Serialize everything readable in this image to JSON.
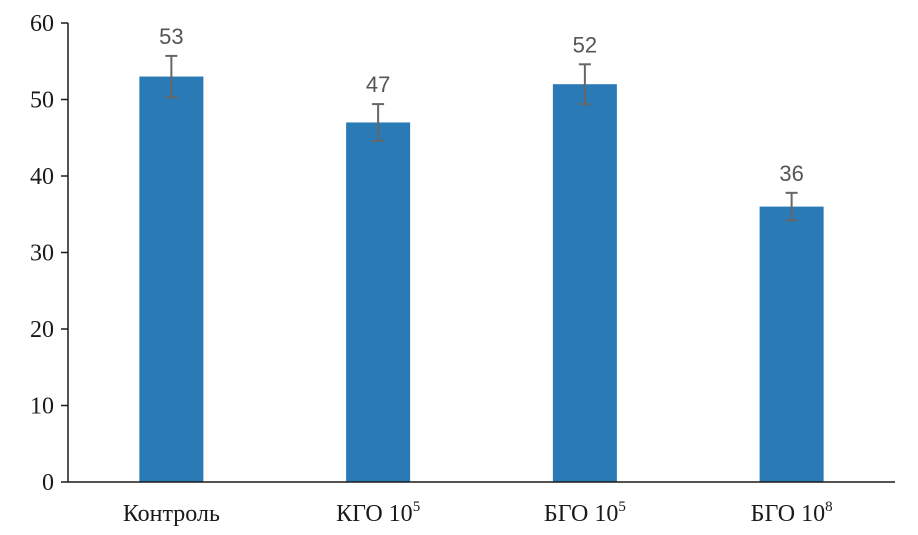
{
  "chart_data": {
    "type": "bar",
    "categories": [
      {
        "base": "Контроль",
        "sup": ""
      },
      {
        "base": "КГО 10",
        "sup": "5"
      },
      {
        "base": "БГО 10",
        "sup": "5"
      },
      {
        "base": "БГО 10",
        "sup": "8"
      }
    ],
    "values": [
      53,
      47,
      52,
      36
    ],
    "error": [
      2.7,
      2.4,
      2.6,
      1.8
    ],
    "data_labels": [
      "53",
      "47",
      "52",
      "36"
    ],
    "ylim": [
      0,
      60
    ],
    "yticks": [
      0,
      10,
      20,
      30,
      40,
      50,
      60
    ],
    "ytick_labels": [
      "0",
      "10",
      "20",
      "30",
      "40",
      "50",
      "60"
    ],
    "title": "",
    "xlabel": "",
    "ylabel": "",
    "grid": false,
    "bar_color": "#2a7ab5",
    "error_color": "#666666"
  }
}
